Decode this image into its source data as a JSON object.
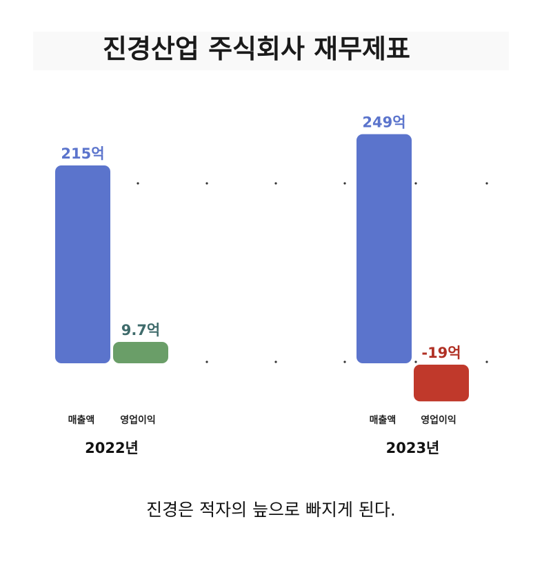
{
  "title": "진경산업 주식회사 재무제표",
  "caption": "진경은 적자의 늪으로 빠지게 된다.",
  "colors": {
    "revenue": "#5b74cc",
    "profit_positive": "#6a9e68",
    "profit_negative": "#c0392b",
    "label_2022_revenue": "#5b74cc",
    "label_2022_profit": "#3f6b6b",
    "label_2023_revenue": "#5b74cc",
    "label_2023_profit": "#b03024"
  },
  "chart_data": {
    "type": "bar",
    "title": "진경산업 주식회사 재무제표",
    "unit": "억",
    "categories": [
      "매출액",
      "영업이익"
    ],
    "groups": [
      {
        "year": "2022년",
        "bars": [
          {
            "category": "매출액",
            "value": 215,
            "label": "215억"
          },
          {
            "category": "영업이익",
            "value": 9.7,
            "label": "9.7억"
          }
        ]
      },
      {
        "year": "2023년",
        "bars": [
          {
            "category": "매출액",
            "value": 249,
            "label": "249억"
          },
          {
            "category": "영업이익",
            "value": -19,
            "label": "-19억"
          }
        ]
      }
    ],
    "ylim": [
      -19,
      249
    ],
    "grid": "dotted"
  }
}
